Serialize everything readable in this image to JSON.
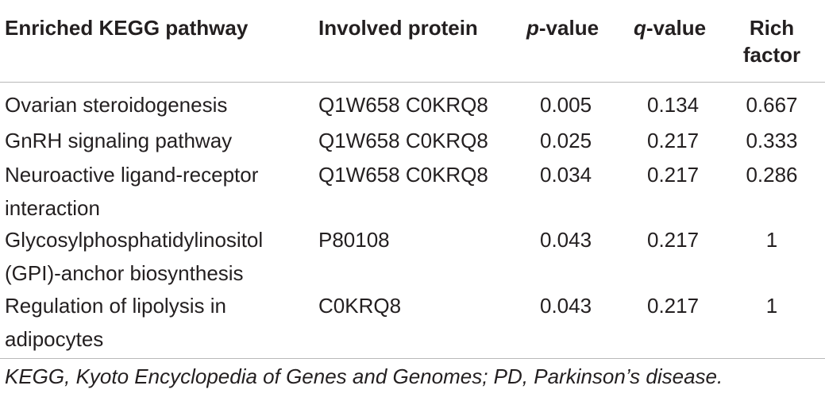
{
  "table": {
    "headers": {
      "pathway": "Enriched KEGG pathway",
      "protein": "Involved protein",
      "p_italic": "p",
      "p_rest": "-value",
      "q_italic": "q",
      "q_rest": "-value",
      "rich_line1": "Rich",
      "rich_line2": "factor"
    },
    "rows": [
      {
        "pathway_line1": "Ovarian steroidogenesis",
        "pathway_line2": "",
        "protein": "Q1W658 C0KRQ8",
        "p_value": "0.005",
        "q_value": "0.134",
        "rich_factor": "0.667"
      },
      {
        "pathway_line1": "GnRH signaling pathway",
        "pathway_line2": "",
        "protein": "Q1W658 C0KRQ8",
        "p_value": "0.025",
        "q_value": "0.217",
        "rich_factor": "0.333"
      },
      {
        "pathway_line1": "Neuroactive ligand-receptor",
        "pathway_line2": "interaction",
        "protein": "Q1W658 C0KRQ8",
        "p_value": "0.034",
        "q_value": "0.217",
        "rich_factor": "0.286"
      },
      {
        "pathway_line1": "Glycosylphosphatidylinositol",
        "pathway_line2": "(GPI)-anchor biosynthesis",
        "protein": "P80108",
        "p_value": "0.043",
        "q_value": "0.217",
        "rich_factor": "1"
      },
      {
        "pathway_line1": "Regulation of lipolysis in",
        "pathway_line2": "adipocytes",
        "protein": "C0KRQ8",
        "p_value": "0.043",
        "q_value": "0.217",
        "rich_factor": "1"
      }
    ]
  },
  "footnote": "KEGG, Kyoto Encyclopedia of Genes and Genomes; PD, Parkinson’s disease."
}
